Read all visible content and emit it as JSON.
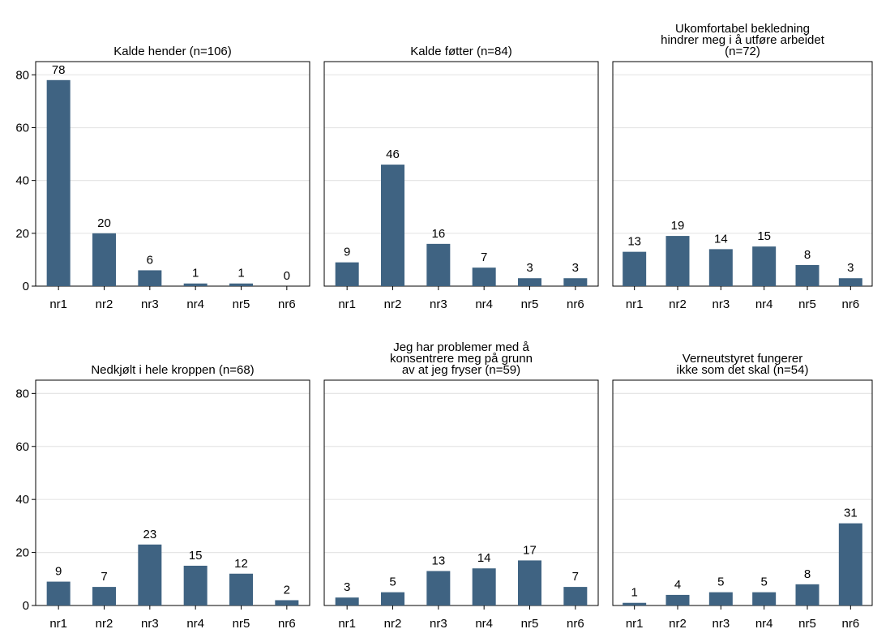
{
  "chart_data": {
    "type": "bar",
    "layout": "2x3 grid of panels, shared y axis",
    "ylim": [
      0,
      85
    ],
    "yticks": [
      0,
      20,
      40,
      60,
      80
    ],
    "grid": true,
    "bar_color": "#3f6382",
    "categories": [
      "nr1",
      "nr2",
      "nr3",
      "nr4",
      "nr5",
      "nr6"
    ],
    "panels": [
      {
        "title": [
          "Kalde hender (n=106)"
        ],
        "values": [
          78,
          20,
          6,
          1,
          1,
          0
        ]
      },
      {
        "title": [
          "Kalde føtter (n=84)"
        ],
        "values": [
          9,
          46,
          16,
          7,
          3,
          3
        ]
      },
      {
        "title": [
          "Ukomfortabel bekledning",
          "hindrer meg i å utføre arbeidet",
          "(n=72)"
        ],
        "values": [
          13,
          19,
          14,
          15,
          8,
          3
        ]
      },
      {
        "title": [
          "Nedkjølt i hele kroppen (n=68)"
        ],
        "values": [
          9,
          7,
          23,
          15,
          12,
          2
        ]
      },
      {
        "title": [
          "Jeg har problemer med å",
          "konsentrere meg på grunn",
          "av at jeg fryser (n=59)"
        ],
        "values": [
          3,
          5,
          13,
          14,
          17,
          7
        ]
      },
      {
        "title": [
          "Verneutstyret fungerer",
          "ikke som det skal (n=54)"
        ],
        "values": [
          1,
          4,
          5,
          5,
          8,
          31
        ]
      }
    ]
  }
}
